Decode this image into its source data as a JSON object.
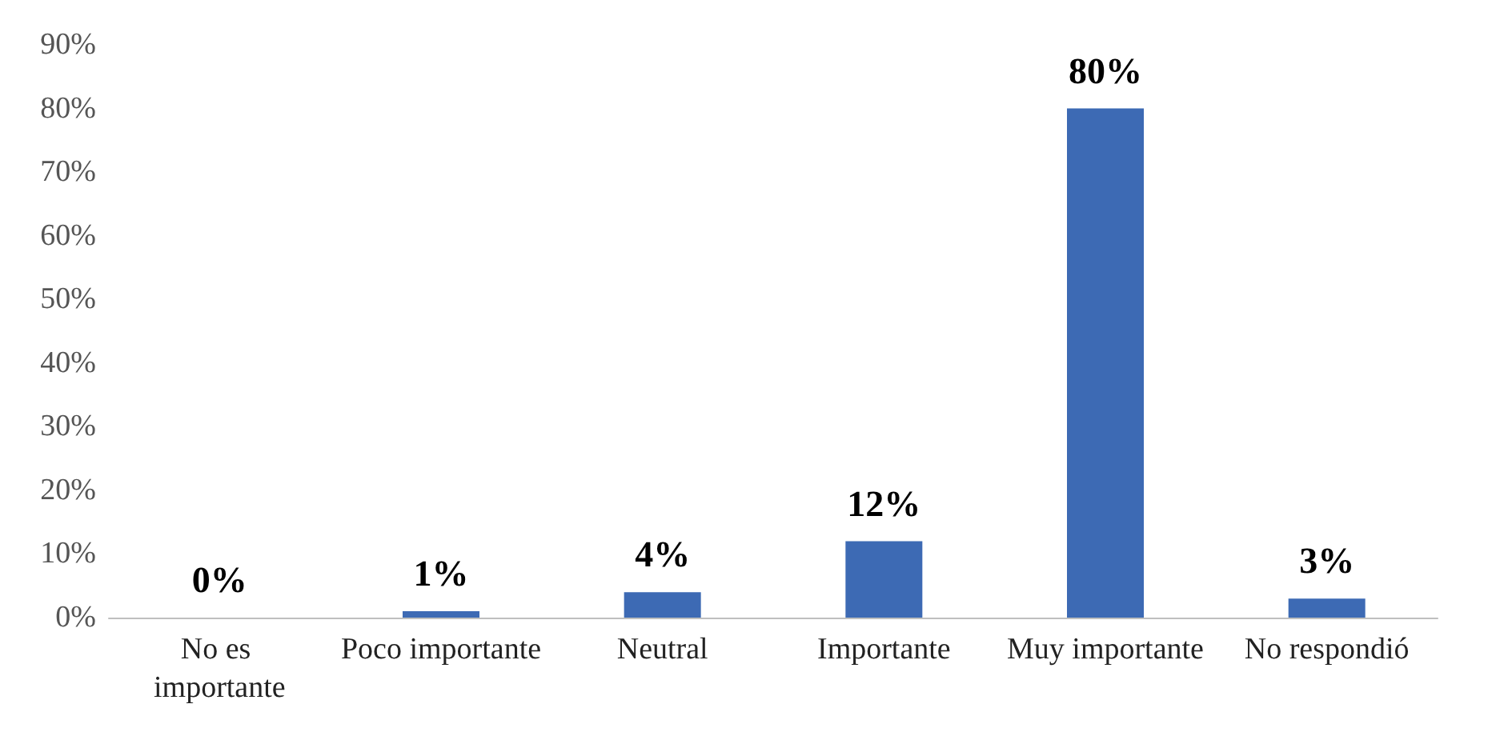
{
  "chart_data": {
    "type": "bar",
    "categories": [
      "No es importante",
      "Poco importante",
      "Neutral",
      "Importante",
      "Muy importante",
      "No respondió"
    ],
    "values": [
      0,
      1,
      4,
      12,
      80,
      3
    ],
    "value_labels": [
      "0%",
      "1%",
      "4%",
      "12%",
      "80%",
      "3%"
    ],
    "color": "#3d6ab4",
    "ylim": [
      0,
      90
    ],
    "yticks": [
      {
        "value": 0,
        "label": "0%"
      },
      {
        "value": 10,
        "label": "10%"
      },
      {
        "value": 20,
        "label": "20%"
      },
      {
        "value": 30,
        "label": "30%"
      },
      {
        "value": 40,
        "label": "40%"
      },
      {
        "value": 50,
        "label": "50%"
      },
      {
        "value": 60,
        "label": "60%"
      },
      {
        "value": 70,
        "label": "70%"
      },
      {
        "value": 80,
        "label": "80%"
      },
      {
        "value": 90,
        "label": "90%"
      }
    ],
    "grid": false
  }
}
